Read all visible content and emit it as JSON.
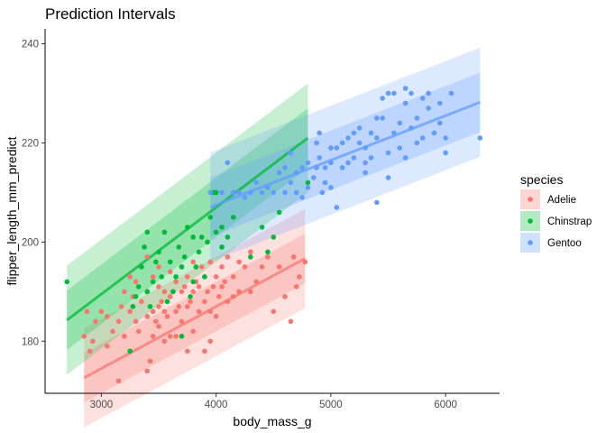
{
  "chart_data": {
    "type": "scatter",
    "title": "Prediction Intervals",
    "xlabel": "body_mass_g",
    "ylabel": "flipper_length_mm_predict",
    "xlim": [
      2510,
      6470
    ],
    "ylim": [
      169.5,
      243
    ],
    "xticks": [
      3000,
      4000,
      5000,
      6000
    ],
    "yticks": [
      180,
      200,
      220,
      240
    ],
    "grid": false,
    "legend": {
      "title": "species",
      "position": "right"
    },
    "series": [
      {
        "name": "Adelie",
        "color": "#F8766D",
        "fit": {
          "x_range": [
            2850,
            4775
          ],
          "intercept": 137.0,
          "slope": 0.0125
        },
        "interval_halfwidths": [
          5,
          10
        ],
        "points": [
          [
            2900,
            178
          ],
          [
            2850,
            181
          ],
          [
            2875,
            186
          ],
          [
            2925,
            180
          ],
          [
            2950,
            184
          ],
          [
            3000,
            186
          ],
          [
            3050,
            185
          ],
          [
            3050,
            179
          ],
          [
            3100,
            182
          ],
          [
            3150,
            172
          ],
          [
            3150,
            184
          ],
          [
            3175,
            187
          ],
          [
            3200,
            181
          ],
          [
            3200,
            190
          ],
          [
            3250,
            178
          ],
          [
            3250,
            186
          ],
          [
            3250,
            193
          ],
          [
            3275,
            189
          ],
          [
            3300,
            184
          ],
          [
            3300,
            192
          ],
          [
            3325,
            182
          ],
          [
            3350,
            188
          ],
          [
            3400,
            174
          ],
          [
            3400,
            185
          ],
          [
            3400,
            190
          ],
          [
            3400,
            197
          ],
          [
            3425,
            176
          ],
          [
            3450,
            181
          ],
          [
            3450,
            186
          ],
          [
            3450,
            193
          ],
          [
            3475,
            184
          ],
          [
            3500,
            183
          ],
          [
            3500,
            187
          ],
          [
            3500,
            191
          ],
          [
            3500,
            195
          ],
          [
            3525,
            188
          ],
          [
            3550,
            180
          ],
          [
            3550,
            186
          ],
          [
            3550,
            190
          ],
          [
            3575,
            185
          ],
          [
            3600,
            181
          ],
          [
            3600,
            189
          ],
          [
            3600,
            194
          ],
          [
            3625,
            190
          ],
          [
            3650,
            181
          ],
          [
            3650,
            186
          ],
          [
            3650,
            192
          ],
          [
            3675,
            187
          ],
          [
            3700,
            184
          ],
          [
            3700,
            190
          ],
          [
            3700,
            195
          ],
          [
            3725,
            191
          ],
          [
            3750,
            178
          ],
          [
            3750,
            187
          ],
          [
            3750,
            193
          ],
          [
            3775,
            188
          ],
          [
            3800,
            182
          ],
          [
            3800,
            190
          ],
          [
            3800,
            196
          ],
          [
            3825,
            192
          ],
          [
            3850,
            186
          ],
          [
            3850,
            191
          ],
          [
            3875,
            195
          ],
          [
            3900,
            178
          ],
          [
            3900,
            188
          ],
          [
            3900,
            193
          ],
          [
            3925,
            190
          ],
          [
            3950,
            180
          ],
          [
            3950,
            186
          ],
          [
            3950,
            196
          ],
          [
            3975,
            191
          ],
          [
            4000,
            185
          ],
          [
            4000,
            193
          ],
          [
            4025,
            189
          ],
          [
            4050,
            191
          ],
          [
            4050,
            195
          ],
          [
            4075,
            192
          ],
          [
            4100,
            188
          ],
          [
            4100,
            197
          ],
          [
            4150,
            193
          ],
          [
            4150,
            189
          ],
          [
            4200,
            190
          ],
          [
            4200,
            196
          ],
          [
            4250,
            195
          ],
          [
            4300,
            190
          ],
          [
            4300,
            198
          ],
          [
            4350,
            192
          ],
          [
            4400,
            195
          ],
          [
            4450,
            197
          ],
          [
            4500,
            186
          ],
          [
            4550,
            195
          ],
          [
            4600,
            189
          ],
          [
            4650,
            184
          ],
          [
            4675,
            197
          ],
          [
            4700,
            191
          ],
          [
            4725,
            193
          ],
          [
            4775,
            196
          ]
        ]
      },
      {
        "name": "Chinstrap",
        "color": "#00BA38",
        "fit": {
          "x_range": [
            2700,
            4800
          ],
          "intercept": 137.0,
          "slope": 0.0175
        },
        "interval_halfwidths": [
          6,
          11
        ],
        "points": [
          [
            2700,
            192
          ],
          [
            3250,
            178
          ],
          [
            3275,
            187
          ],
          [
            3300,
            189
          ],
          [
            3325,
            191
          ],
          [
            3350,
            195
          ],
          [
            3375,
            199
          ],
          [
            3400,
            202
          ],
          [
            3400,
            190
          ],
          [
            3425,
            187
          ],
          [
            3450,
            192
          ],
          [
            3475,
            196
          ],
          [
            3500,
            198
          ],
          [
            3525,
            193
          ],
          [
            3550,
            202
          ],
          [
            3575,
            188
          ],
          [
            3600,
            196
          ],
          [
            3625,
            190
          ],
          [
            3650,
            193
          ],
          [
            3675,
            199
          ],
          [
            3700,
            181
          ],
          [
            3700,
            195
          ],
          [
            3725,
            197
          ],
          [
            3750,
            203
          ],
          [
            3775,
            189
          ],
          [
            3800,
            192
          ],
          [
            3800,
            201
          ],
          [
            3825,
            195
          ],
          [
            3850,
            198
          ],
          [
            3875,
            201
          ],
          [
            3900,
            193
          ],
          [
            3925,
            200
          ],
          [
            3950,
            205
          ],
          [
            3975,
            210
          ],
          [
            4000,
            202
          ],
          [
            4000,
            210
          ],
          [
            4050,
            199
          ],
          [
            4050,
            203
          ],
          [
            4100,
            201
          ],
          [
            4150,
            205
          ],
          [
            4300,
            197
          ],
          [
            4400,
            203
          ],
          [
            4450,
            198
          ],
          [
            4500,
            201
          ],
          [
            4550,
            206
          ],
          [
            4800,
            212
          ]
        ]
      },
      {
        "name": "Gentoo",
        "color": "#619CFF",
        "fit": {
          "x_range": [
            3950,
            6300
          ],
          "intercept": 171.5,
          "slope": 0.009
        },
        "interval_halfwidths": [
          6,
          11
        ],
        "points": [
          [
            3950,
            210
          ],
          [
            4050,
            210
          ],
          [
            4100,
            216
          ],
          [
            4150,
            210
          ],
          [
            4200,
            210
          ],
          [
            4250,
            209
          ],
          [
            4300,
            210
          ],
          [
            4350,
            212
          ],
          [
            4400,
            210
          ],
          [
            4450,
            211
          ],
          [
            4500,
            210
          ],
          [
            4550,
            214
          ],
          [
            4600,
            215
          ],
          [
            4650,
            212
          ],
          [
            4700,
            210
          ],
          [
            4750,
            215
          ],
          [
            4800,
            211
          ],
          [
            4850,
            213
          ],
          [
            4875,
            220
          ],
          [
            4900,
            217
          ],
          [
            4925,
            210
          ],
          [
            4950,
            215
          ],
          [
            5000,
            216
          ],
          [
            5000,
            211
          ],
          [
            5050,
            219
          ],
          [
            5050,
            207
          ],
          [
            5100,
            220
          ],
          [
            5150,
            216
          ],
          [
            5200,
            217
          ],
          [
            5200,
            222
          ],
          [
            5250,
            220
          ],
          [
            5300,
            214
          ],
          [
            5300,
            219
          ],
          [
            5350,
            222
          ],
          [
            5400,
            208
          ],
          [
            5400,
            221
          ],
          [
            5450,
            225
          ],
          [
            5500,
            218
          ],
          [
            5500,
            213
          ],
          [
            5550,
            222
          ],
          [
            5600,
            224
          ],
          [
            5600,
            219
          ],
          [
            5650,
            228
          ],
          [
            5650,
            217
          ],
          [
            5700,
            230
          ],
          [
            5700,
            223
          ],
          [
            5750,
            225
          ],
          [
            5800,
            229
          ],
          [
            5800,
            221
          ],
          [
            5850,
            230
          ],
          [
            5900,
            222
          ],
          [
            5950,
            228
          ],
          [
            6000,
            218
          ],
          [
            6050,
            230
          ],
          [
            6300,
            221
          ],
          [
            5850,
            227
          ],
          [
            5500,
            230
          ],
          [
            5550,
            230
          ],
          [
            5450,
            229
          ],
          [
            5400,
            225
          ],
          [
            5250,
            223
          ],
          [
            5150,
            221
          ],
          [
            5100,
            215
          ],
          [
            5000,
            219
          ],
          [
            4950,
            212
          ],
          [
            4875,
            215
          ],
          [
            4750,
            209
          ],
          [
            4700,
            214
          ],
          [
            4600,
            210
          ],
          [
            4650,
            218
          ],
          [
            4800,
            216
          ],
          [
            4900,
            222
          ],
          [
            5350,
            217
          ],
          [
            5750,
            220
          ],
          [
            5950,
            224
          ],
          [
            6000,
            221
          ],
          [
            5650,
            231
          ],
          [
            5300,
            216
          ]
        ]
      }
    ]
  }
}
